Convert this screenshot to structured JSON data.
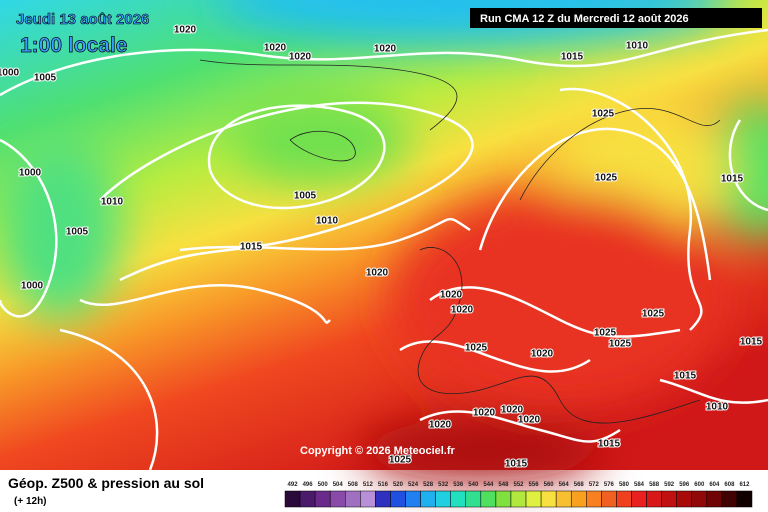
{
  "header": {
    "date": "Jeudi 13 août 2026",
    "time": "1:00 locale",
    "run": "Run CMA 12 Z du Mercredi 12 août 2026"
  },
  "isobar_labels": [
    "1020",
    "1020",
    "1020",
    "1020",
    "1015",
    "1010",
    "1005",
    "1000",
    "1025",
    "1000",
    "1010",
    "1005",
    "1010",
    "1025",
    "1015",
    "1005",
    "1015",
    "1020",
    "1000",
    "1020",
    "1020",
    "1025",
    "1025",
    "1025",
    "1015",
    "1025",
    "1020",
    "1015",
    "1010",
    "1020",
    "1020",
    "1020",
    "1020",
    "1015",
    "1025",
    "1015"
  ],
  "copyright": "Copyright © 2026 Meteociel.fr",
  "legend": {
    "title": "Géop. Z500 & pression au sol",
    "subtitle": "(+ 12h)",
    "scale": [
      492,
      496,
      500,
      504,
      508,
      512,
      516,
      520,
      524,
      528,
      532,
      536,
      540,
      544,
      548,
      552,
      556,
      560,
      564,
      568,
      572,
      576,
      580,
      584,
      588,
      592,
      596,
      600,
      604,
      608,
      612
    ],
    "colors": [
      "#2a0a3a",
      "#4b1a6a",
      "#6a2a8a",
      "#8a4aaa",
      "#a070c0",
      "#b890d8",
      "#3030c0",
      "#2050e0",
      "#2080f0",
      "#20b0f0",
      "#20d0e0",
      "#20e0c0",
      "#30e090",
      "#50e060",
      "#80e040",
      "#b0e840",
      "#e0f040",
      "#f8e040",
      "#f8c030",
      "#f8a020",
      "#f88020",
      "#f06020",
      "#f04020",
      "#e82020",
      "#d81818",
      "#c01010",
      "#a80a0a",
      "#900808",
      "#700404",
      "#400202",
      "#100000"
    ]
  }
}
